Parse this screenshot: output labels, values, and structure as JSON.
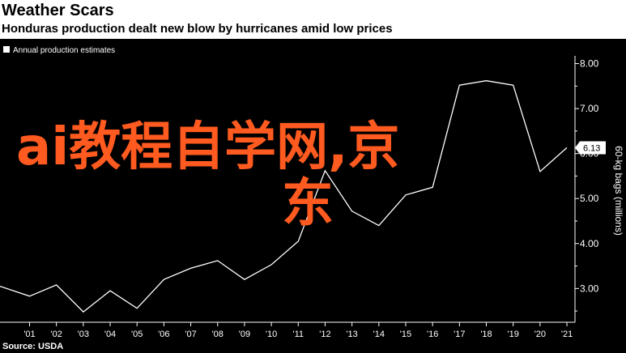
{
  "header": {
    "title": "Weather Scars",
    "subtitle": "Honduras production dealt new blow by hurricanes amid low prices"
  },
  "overlay": {
    "line1": "ai教程自学网,京",
    "line2": "东"
  },
  "colors": {
    "background": "#000000",
    "line": "#ffffff",
    "axis": "#ffffff",
    "watermark": "#ff5a1f"
  },
  "chart_data": {
    "type": "line",
    "legend": [
      "Annual production estimates"
    ],
    "legend_position": "top-left",
    "ylabel": "60-kg bags (millions)",
    "ylim": [
      2.25,
      8.1
    ],
    "y_ticks": [
      "3.00",
      "4.00",
      "5.00",
      "6.00",
      "7.00",
      "8.00"
    ],
    "y_tick_values": [
      3,
      4,
      5,
      6,
      7,
      8
    ],
    "xlim": [
      1999.9,
      2021.3
    ],
    "x_ticks": [
      "'01",
      "'02",
      "'03",
      "'04",
      "'05",
      "'06",
      "'07",
      "'08",
      "'09",
      "'10",
      "'11",
      "'12",
      "'13",
      "'14",
      "'15",
      "'16",
      "'17",
      "'18",
      "'19",
      "'20",
      "'21"
    ],
    "x_tick_values": [
      2001,
      2002,
      2003,
      2004,
      2005,
      2006,
      2007,
      2008,
      2009,
      2010,
      2011,
      2012,
      2013,
      2014,
      2015,
      2016,
      2017,
      2018,
      2019,
      2020,
      2021
    ],
    "last_value_label": "6.13",
    "series": [
      {
        "name": "Annual production estimates",
        "x": [
          1999.9,
          2001,
          2002,
          2003,
          2004,
          2005,
          2006,
          2007,
          2008,
          2009,
          2010,
          2011,
          2012,
          2013,
          2014,
          2015,
          2016,
          2017,
          2018,
          2019,
          2020,
          2021
        ],
        "values": [
          3.05,
          2.83,
          3.08,
          2.48,
          2.95,
          2.56,
          3.2,
          3.45,
          3.62,
          3.2,
          3.53,
          4.05,
          5.62,
          4.72,
          4.4,
          5.08,
          5.25,
          7.52,
          7.62,
          7.52,
          5.6,
          6.13
        ]
      }
    ],
    "grid": false,
    "source": "Source: USDA"
  }
}
